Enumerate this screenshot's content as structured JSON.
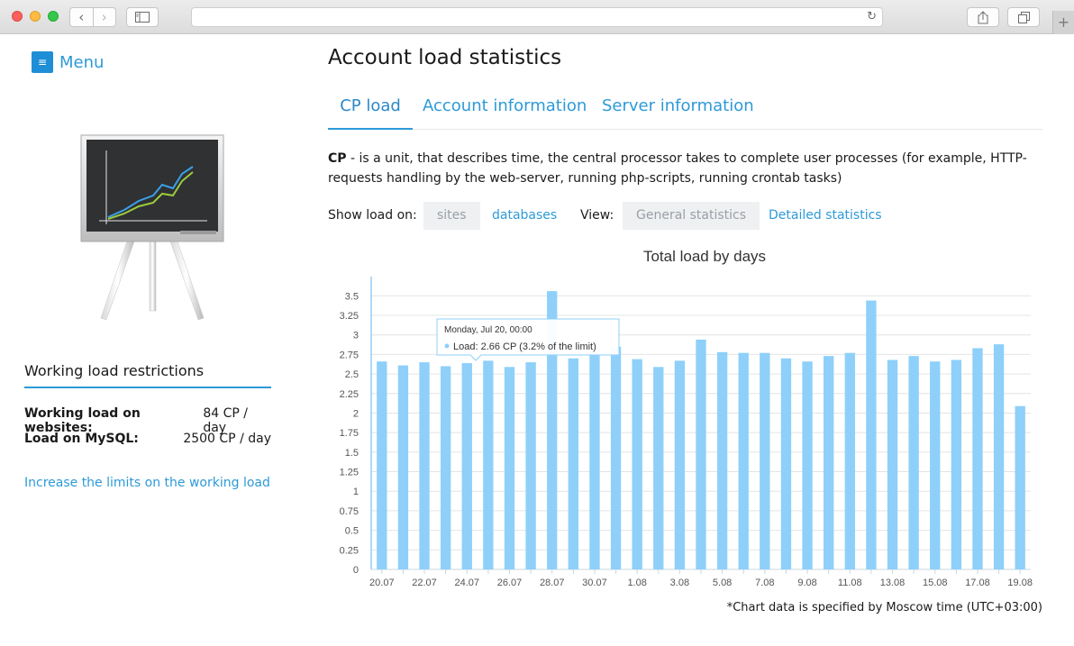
{
  "browser": {
    "back_glyph": "‹",
    "forward_glyph": "›",
    "reload_glyph": "↻",
    "new_tab_glyph": "+",
    "icons": [
      "back-icon",
      "forward-icon",
      "sidebar-icon",
      "reload-icon",
      "share-icon",
      "tabs-icon",
      "new-tab-icon"
    ]
  },
  "menu": {
    "icon": "≡",
    "label": "Menu"
  },
  "sidebar": {
    "restrictions_title": "Working load restrictions",
    "rows": [
      {
        "label": "Working load on websites:",
        "value": "84 CP / day"
      },
      {
        "label": "Load on MySQL:",
        "value": "2500 CP / day"
      }
    ],
    "increase_link": "Increase the limits on the working load"
  },
  "main": {
    "title": "Account load statistics",
    "tabs": [
      {
        "label": "CP load",
        "active": true
      },
      {
        "label": "Account information",
        "active": false
      },
      {
        "label": "Server information",
        "active": false
      }
    ],
    "description_term": "CP",
    "description_text": " - is a unit, that describes time, the central processor takes to complete user processes (for example, HTTP-requests handling by the web-server, running php-scripts, running crontab tasks)",
    "show_load_label": "Show load on:",
    "show_load_options": [
      {
        "label": "sites",
        "selected": true
      },
      {
        "label": "databases",
        "selected": false
      }
    ],
    "view_label": "View:",
    "view_options": [
      {
        "label": "General statistics",
        "selected": true
      },
      {
        "label": "Detailed statistics",
        "selected": false
      }
    ],
    "footnote": "*Chart data is specified by Moscow time (UTC+03:00)"
  },
  "colors": {
    "accent": "#2d9ad8",
    "bar": "#8ed0f9",
    "tooltip_dot": "#8ed0f9"
  },
  "chart_data": {
    "type": "bar",
    "title": "Total load by days",
    "xlabel": "",
    "ylabel": "",
    "ylim": [
      0,
      3.7
    ],
    "yticks": [
      0,
      0.25,
      0.5,
      0.75,
      1,
      1.25,
      1.5,
      1.75,
      2,
      2.25,
      2.5,
      2.75,
      3,
      3.25,
      3.5
    ],
    "ytick_labels": [
      "0",
      "0.25",
      "0.5",
      "0.75",
      "1",
      "1.25",
      "1.5",
      "1.75",
      "2",
      "2.25",
      "2.5",
      "2.75",
      "3",
      "3.25",
      "3.5"
    ],
    "grid": true,
    "categories": [
      "20.07",
      "21.07",
      "22.07",
      "23.07",
      "24.07",
      "25.07",
      "26.07",
      "27.07",
      "28.07",
      "29.07",
      "30.07",
      "31.07",
      "1.08",
      "2.08",
      "3.08",
      "4.08",
      "5.08",
      "6.08",
      "7.08",
      "8.08",
      "9.08",
      "10.08",
      "11.08",
      "12.08",
      "13.08",
      "14.08",
      "15.08",
      "16.08",
      "17.08",
      "18.08",
      "19.08"
    ],
    "xtick_labels": [
      "20.07",
      "",
      "22.07",
      "",
      "24.07",
      "",
      "26.07",
      "",
      "28.07",
      "",
      "30.07",
      "",
      "1.08",
      "",
      "3.08",
      "",
      "5.08",
      "",
      "7.08",
      "",
      "9.08",
      "",
      "11.08",
      "",
      "13.08",
      "",
      "15.08",
      "",
      "17.08",
      "",
      "19.08"
    ],
    "values": [
      2.66,
      2.61,
      2.65,
      2.6,
      2.64,
      2.67,
      2.59,
      2.65,
      3.56,
      2.7,
      2.79,
      2.85,
      2.69,
      2.59,
      2.67,
      2.94,
      2.78,
      2.77,
      2.77,
      2.7,
      2.66,
      2.73,
      2.77,
      3.44,
      2.68,
      2.73,
      2.66,
      2.68,
      2.83,
      2.88,
      2.09
    ],
    "tooltip": {
      "category_index": 0,
      "header": "Monday, Jul 20, 00:00",
      "line": "Load: 2.66 CP (3.2% of the limit)"
    }
  }
}
